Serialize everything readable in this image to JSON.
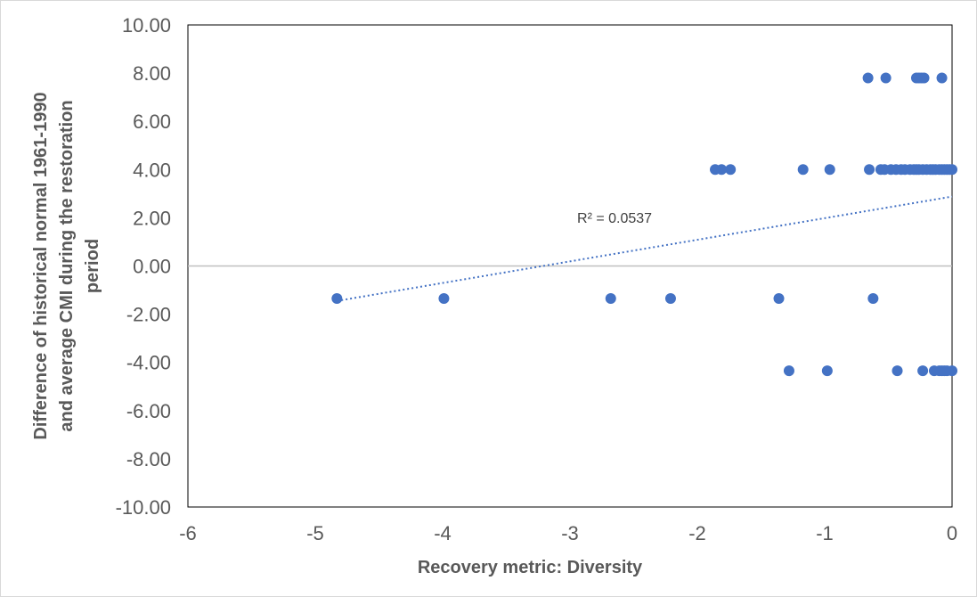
{
  "chart_data": {
    "type": "scatter",
    "xlabel": "Recovery metric: Diversity",
    "ylabel_lines": [
      "Difference of historical normal 1961-1990",
      "and average  CMI during the restoration",
      "period"
    ],
    "xlim": [
      -6,
      0
    ],
    "ylim": [
      -10,
      10
    ],
    "x_ticks": [
      -6,
      -5,
      -4,
      -3,
      -2,
      -1,
      0
    ],
    "y_ticks": [
      "10.00",
      "8.00",
      "6.00",
      "4.00",
      "2.00",
      "0.00",
      "-2.00",
      "-4.00",
      "-6.00",
      "-8.00",
      "-10.00"
    ],
    "grid": false,
    "legend": "none",
    "colors": {
      "points": "#4472c4",
      "trendline": "#4472c4",
      "zero_line": "#bfbfbf",
      "plot_border": "#000000",
      "text": "#595959"
    },
    "annotations": [
      {
        "text": "R² = 0.0537",
        "x": -2.65,
        "y": 1.8
      }
    ],
    "trendline": {
      "style": "dotted",
      "x": [
        -4.83,
        0
      ],
      "y": [
        -1.45,
        2.88
      ]
    },
    "points": [
      {
        "x": -0.66,
        "y": 7.8
      },
      {
        "x": -0.52,
        "y": 7.8
      },
      {
        "x": -0.28,
        "y": 7.8
      },
      {
        "x": -0.26,
        "y": 7.8
      },
      {
        "x": -0.24,
        "y": 7.8
      },
      {
        "x": -0.22,
        "y": 7.8
      },
      {
        "x": -0.08,
        "y": 7.8
      },
      {
        "x": -1.86,
        "y": 4.0
      },
      {
        "x": -1.81,
        "y": 4.0
      },
      {
        "x": -1.74,
        "y": 4.0
      },
      {
        "x": -1.17,
        "y": 4.0
      },
      {
        "x": -0.96,
        "y": 4.0
      },
      {
        "x": -0.65,
        "y": 4.0
      },
      {
        "x": -0.56,
        "y": 4.0
      },
      {
        "x": -0.53,
        "y": 4.0
      },
      {
        "x": -0.48,
        "y": 4.0
      },
      {
        "x": -0.44,
        "y": 4.0
      },
      {
        "x": -0.4,
        "y": 4.0
      },
      {
        "x": -0.37,
        "y": 4.0
      },
      {
        "x": -0.33,
        "y": 4.0
      },
      {
        "x": -0.3,
        "y": 4.0
      },
      {
        "x": -0.28,
        "y": 4.0
      },
      {
        "x": -0.26,
        "y": 4.0
      },
      {
        "x": -0.23,
        "y": 4.0
      },
      {
        "x": -0.2,
        "y": 4.0
      },
      {
        "x": -0.17,
        "y": 4.0
      },
      {
        "x": -0.15,
        "y": 4.0
      },
      {
        "x": -0.13,
        "y": 4.0
      },
      {
        "x": -0.1,
        "y": 4.0
      },
      {
        "x": -0.08,
        "y": 4.0
      },
      {
        "x": -0.06,
        "y": 4.0
      },
      {
        "x": -0.04,
        "y": 4.0
      },
      {
        "x": -0.02,
        "y": 4.0
      },
      {
        "x": 0.0,
        "y": 4.0
      },
      {
        "x": -4.83,
        "y": -1.35
      },
      {
        "x": -3.99,
        "y": -1.35
      },
      {
        "x": -2.68,
        "y": -1.35
      },
      {
        "x": -2.21,
        "y": -1.35
      },
      {
        "x": -1.36,
        "y": -1.35
      },
      {
        "x": -0.62,
        "y": -1.35
      },
      {
        "x": -1.28,
        "y": -4.35
      },
      {
        "x": -0.98,
        "y": -4.35
      },
      {
        "x": -0.43,
        "y": -4.35
      },
      {
        "x": -0.23,
        "y": -4.35
      },
      {
        "x": -0.14,
        "y": -4.35
      },
      {
        "x": -0.1,
        "y": -4.35
      },
      {
        "x": -0.08,
        "y": -4.35
      },
      {
        "x": -0.06,
        "y": -4.35
      },
      {
        "x": -0.04,
        "y": -4.35
      },
      {
        "x": 0.0,
        "y": -4.35
      }
    ]
  }
}
